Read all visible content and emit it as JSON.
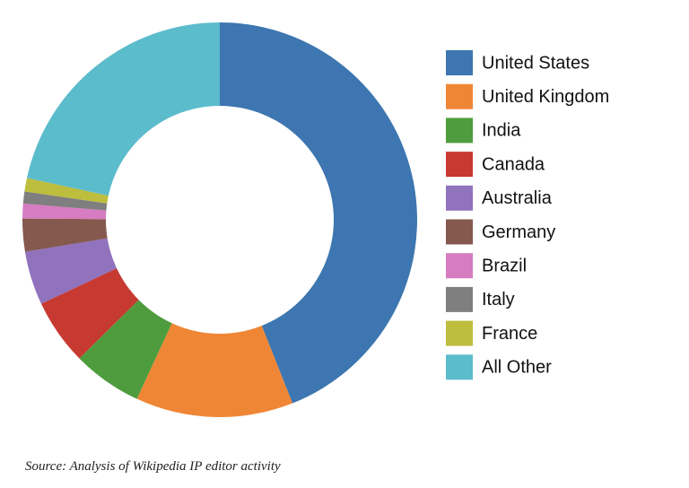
{
  "chart_data": {
    "type": "donut",
    "categories": [
      "United States",
      "United Kingdom",
      "India",
      "Canada",
      "Australia",
      "Germany",
      "Brazil",
      "Italy",
      "France",
      "All Other"
    ],
    "values": [
      44,
      12.9,
      5.7,
      5.4,
      4.4,
      2.7,
      1.2,
      1.0,
      1.1,
      21.6
    ],
    "colors": [
      "#3d76b0",
      "#ef8636",
      "#4f9c3e",
      "#c73a32",
      "#9072bd",
      "#85594e",
      "#d67cc0",
      "#7f7f7f",
      "#bdbd3e",
      "#5bbccc"
    ],
    "source": "Source: Analysis of Wikipedia IP editor activity"
  }
}
